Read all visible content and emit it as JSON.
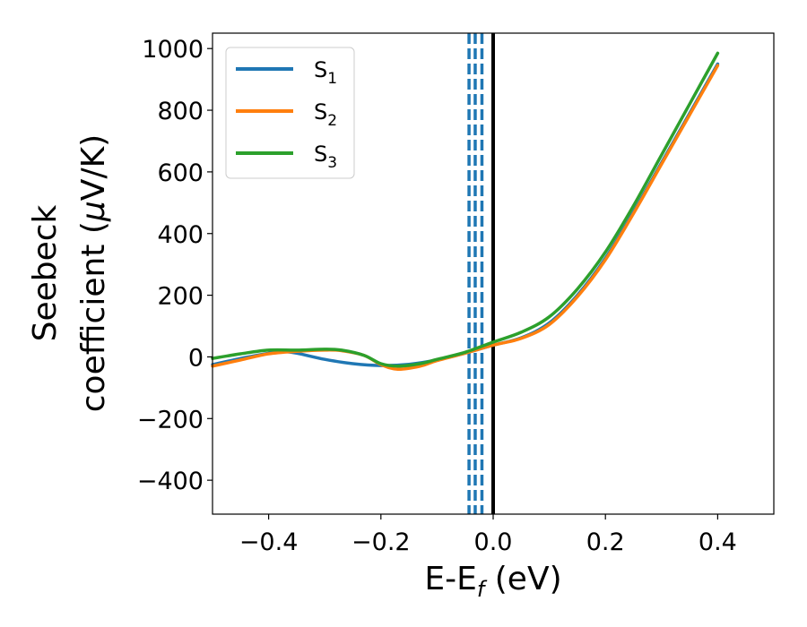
{
  "chart_data": {
    "type": "line",
    "xlabel": "E-E",
    "xlabel_sub": "f",
    "xlabel_unit": " (eV)",
    "ylabel_line1": "Seebeck",
    "ylabel_line2": "coefficient  (",
    "ylabel_mu": "μ",
    "ylabel_unit": "V/K)",
    "xlim": [
      -0.5,
      0.5
    ],
    "ylim": [
      -510,
      1050
    ],
    "x_ticks": [
      -0.4,
      -0.2,
      0.0,
      0.2,
      0.4
    ],
    "x_tick_labels": [
      "−0.4",
      "−0.2",
      "0.0",
      "0.2",
      "0.4"
    ],
    "y_ticks": [
      -400,
      -200,
      0,
      200,
      400,
      600,
      800,
      1000
    ],
    "y_tick_labels": [
      "−400",
      "−200",
      "0",
      "200",
      "400",
      "600",
      "800",
      "1000"
    ],
    "grid": false,
    "legend_position": "top-left",
    "series": [
      {
        "name": "S",
        "sub": "1",
        "color": "#1f77b4",
        "points": [
          [
            -0.5,
            -25
          ],
          [
            -0.45,
            -5
          ],
          [
            -0.4,
            12
          ],
          [
            -0.38,
            18
          ],
          [
            -0.35,
            12
          ],
          [
            -0.3,
            -8
          ],
          [
            -0.25,
            -22
          ],
          [
            -0.2,
            -28
          ],
          [
            -0.15,
            -24
          ],
          [
            -0.1,
            -10
          ],
          [
            -0.05,
            12
          ],
          [
            0.0,
            38
          ],
          [
            0.05,
            62
          ],
          [
            0.1,
            110
          ],
          [
            0.15,
            200
          ],
          [
            0.2,
            320
          ],
          [
            0.25,
            470
          ],
          [
            0.3,
            630
          ],
          [
            0.35,
            790
          ],
          [
            0.4,
            950
          ]
        ]
      },
      {
        "name": "S",
        "sub": "2",
        "color": "#ff7f0e",
        "points": [
          [
            -0.5,
            -30
          ],
          [
            -0.45,
            -10
          ],
          [
            -0.4,
            10
          ],
          [
            -0.35,
            18
          ],
          [
            -0.3,
            22
          ],
          [
            -0.27,
            20
          ],
          [
            -0.23,
            5
          ],
          [
            -0.2,
            -25
          ],
          [
            -0.17,
            -40
          ],
          [
            -0.13,
            -30
          ],
          [
            -0.1,
            -12
          ],
          [
            -0.05,
            12
          ],
          [
            0.0,
            38
          ],
          [
            0.05,
            60
          ],
          [
            0.1,
            105
          ],
          [
            0.15,
            195
          ],
          [
            0.2,
            315
          ],
          [
            0.25,
            465
          ],
          [
            0.3,
            625
          ],
          [
            0.35,
            785
          ],
          [
            0.4,
            945
          ]
        ]
      },
      {
        "name": "S",
        "sub": "3",
        "color": "#2ca02c",
        "points": [
          [
            -0.5,
            -5
          ],
          [
            -0.45,
            10
          ],
          [
            -0.4,
            22
          ],
          [
            -0.35,
            22
          ],
          [
            -0.3,
            25
          ],
          [
            -0.27,
            22
          ],
          [
            -0.23,
            5
          ],
          [
            -0.2,
            -22
          ],
          [
            -0.17,
            -30
          ],
          [
            -0.13,
            -22
          ],
          [
            -0.1,
            -8
          ],
          [
            -0.05,
            15
          ],
          [
            0.0,
            48
          ],
          [
            0.05,
            80
          ],
          [
            0.1,
            130
          ],
          [
            0.15,
            220
          ],
          [
            0.2,
            340
          ],
          [
            0.25,
            490
          ],
          [
            0.3,
            655
          ],
          [
            0.35,
            820
          ],
          [
            0.4,
            985
          ]
        ]
      }
    ],
    "vlines": [
      {
        "x": -0.043,
        "style": "dashed",
        "color": "#1f77b4"
      },
      {
        "x": -0.032,
        "style": "dashed",
        "color": "#1f77b4"
      },
      {
        "x": -0.02,
        "style": "dashed",
        "color": "#1f77b4"
      },
      {
        "x": 0.0,
        "style": "solid",
        "color": "#000000"
      }
    ]
  }
}
